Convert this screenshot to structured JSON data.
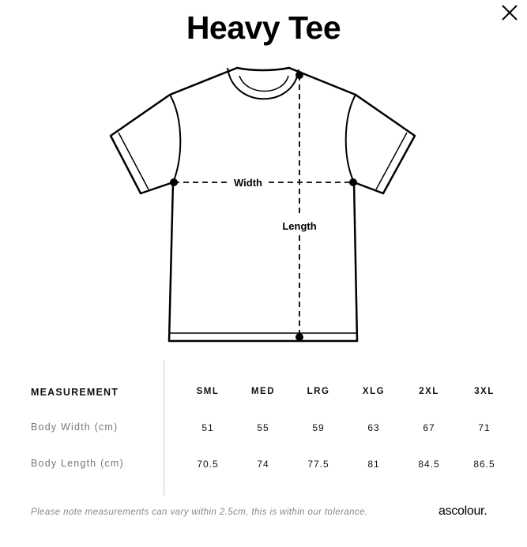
{
  "title": "Heavy Tee",
  "diagram": {
    "width_label": "Width",
    "length_label": "Length"
  },
  "table": {
    "header_label": "MEASUREMENT",
    "sizes": [
      "SML",
      "MED",
      "LRG",
      "XLG",
      "2XL",
      "3XL"
    ],
    "rows": [
      {
        "label": "Body Width (cm)",
        "values": [
          "51",
          "55",
          "59",
          "63",
          "67",
          "71"
        ]
      },
      {
        "label": "Body Length (cm)",
        "values": [
          "70.5",
          "74",
          "77.5",
          "81",
          "84.5",
          "86.5"
        ]
      }
    ]
  },
  "note": "Please note measurements can vary within 2.5cm, this is within our tolerance.",
  "logo": "ascolour.",
  "icons": {
    "close": "close-icon"
  }
}
